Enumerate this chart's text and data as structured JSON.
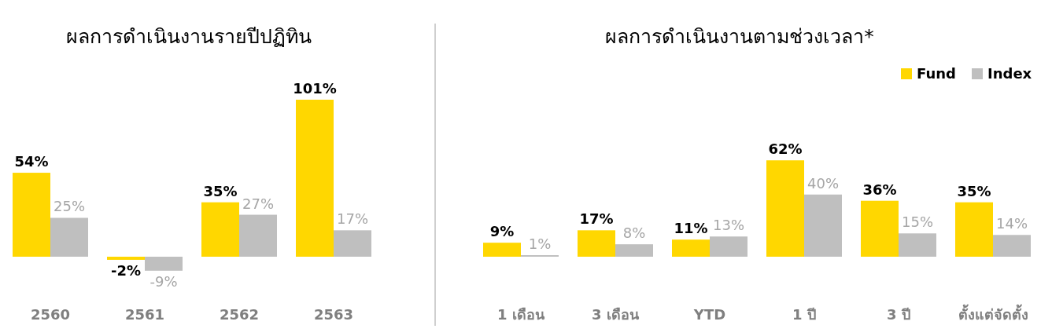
{
  "chart_data": [
    {
      "type": "bar",
      "title": "ผลการดำเนินงานรายปีปฏิทิน",
      "categories": [
        "2560",
        "2561",
        "2562",
        "2563"
      ],
      "legend": false,
      "series": [
        {
          "color": "#ffd700",
          "values": [
            54,
            -2,
            35,
            101
          ],
          "value_labels": [
            "54%",
            "-2%",
            "35%",
            "101%"
          ]
        },
        {
          "color": "#bfbfbf",
          "values": [
            25,
            -9,
            27,
            17
          ],
          "value_labels": [
            "25%",
            "-9%",
            "27%",
            "17%"
          ]
        }
      ]
    },
    {
      "type": "bar",
      "title": "ผลการดำเนินงานตามช่วงเวลา*",
      "categories": [
        "1 เดือน",
        "3 เดือน",
        "YTD",
        "1 ปี",
        "3 ปี",
        "ตั้งแต่จัดตั้ง"
      ],
      "legend": "top right",
      "series": [
        {
          "name": "Fund",
          "color": "#ffd700",
          "values": [
            9,
            17,
            11,
            62,
            36,
            35
          ],
          "value_labels": [
            "9%",
            "17%",
            "11%",
            "62%",
            "36%",
            "35%"
          ]
        },
        {
          "name": "Index",
          "color": "#bfbfbf",
          "values": [
            1,
            8,
            13,
            40,
            15,
            14
          ],
          "value_labels": [
            "1%",
            "8%",
            "13%",
            "40%",
            "15%",
            "14%"
          ]
        }
      ]
    }
  ]
}
